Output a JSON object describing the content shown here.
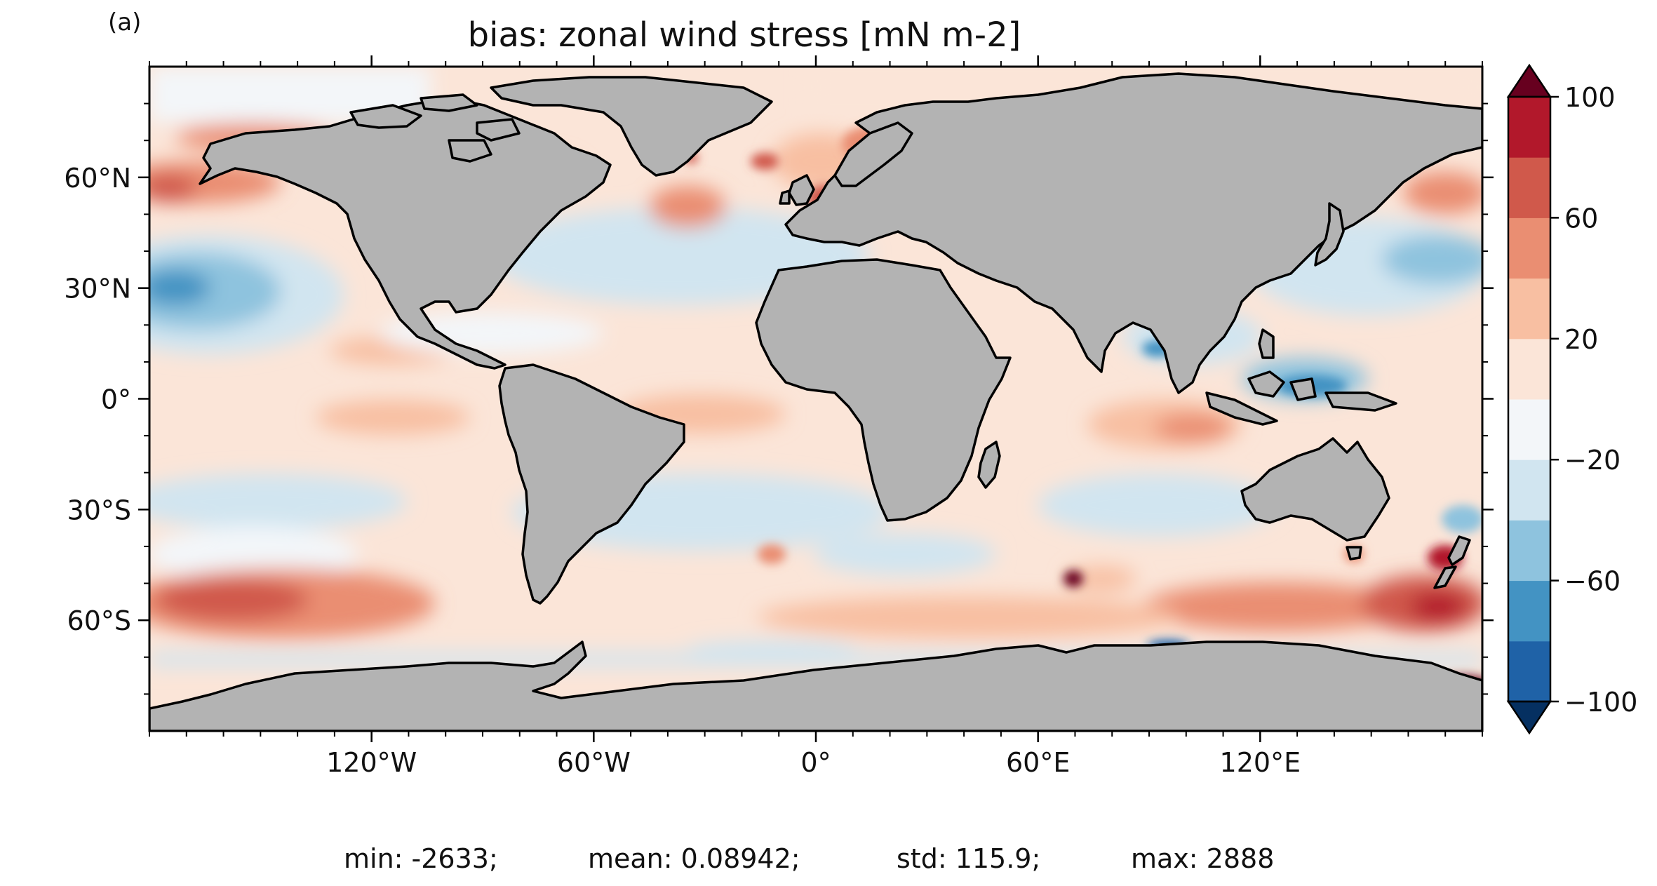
{
  "figure": {
    "panel_label": "(a)",
    "title": "bias: zonal wind stress [mN m-2]"
  },
  "map": {
    "projection": "plate carree",
    "lon_ticks": [
      "120°W",
      "60°W",
      "0°",
      "60°E",
      "120°E"
    ],
    "lat_ticks": [
      "60°N",
      "30°N",
      "0°",
      "30°S",
      "60°S"
    ],
    "land_color": "#b3b3b3",
    "coastline_color": "#000000"
  },
  "colorbar": {
    "ticks": [
      "100",
      "60",
      "20",
      "−20",
      "−60",
      "−100"
    ],
    "extend": "both",
    "colors": [
      "#053061",
      "#1f62a7",
      "#4393c3",
      "#8ec3de",
      "#d1e5f0",
      "#f3f6f9",
      "#fbe5d8",
      "#f8bfa2",
      "#ea8e72",
      "#d0594b",
      "#b2182b",
      "#67001f"
    ]
  },
  "stats": {
    "min": "min: -2633;",
    "mean": "mean: 0.08942;",
    "std": "std: 115.9;",
    "max": "max: 2888"
  },
  "chart_data": {
    "type": "heatmap",
    "title": "bias: zonal wind stress [mN m-2]",
    "variable": "zonal wind stress bias",
    "units": "mN m-2",
    "x_range": [
      -180,
      180
    ],
    "y_range": [
      -90,
      90
    ],
    "colorbar_levels": [
      -100,
      -80,
      -60,
      -40,
      -20,
      0,
      20,
      40,
      60,
      80,
      100
    ],
    "stats": {
      "min": -2633,
      "mean": 0.08942,
      "std": 115.9,
      "max": 2888
    }
  }
}
